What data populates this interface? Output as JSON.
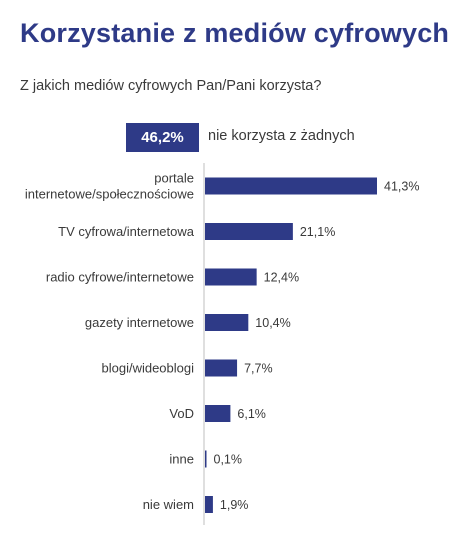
{
  "header": {
    "title": "Korzystanie z mediów cyfrowych",
    "question": "Z jakich mediów cyfrowych Pan/Pani korzysta?"
  },
  "highlight": {
    "value": "46,2%",
    "label": "nie korzysta z żadnych"
  },
  "colors": {
    "bar": "#2e3a87",
    "title": "#2e3a87",
    "text": "#3a3a3a",
    "axis": "#bfbfbf"
  },
  "chart_data": {
    "type": "bar",
    "orientation": "horizontal",
    "categories": [
      [
        "portale",
        "internetowe/społecznościowe"
      ],
      [
        "TV cyfrowa/internetowa"
      ],
      [
        "radio cyfrowe/internetowe"
      ],
      [
        "gazety internetowe"
      ],
      [
        "blogi/wideoblogi"
      ],
      [
        "VoD"
      ],
      [
        "inne"
      ],
      [
        "nie wiem"
      ]
    ],
    "values": [
      41.3,
      21.1,
      12.4,
      10.4,
      7.7,
      6.1,
      0.1,
      1.9
    ],
    "value_labels": [
      "41,3%",
      "21,1%",
      "12,4%",
      "10,4%",
      "7,7%",
      "6,1%",
      "0,1%",
      "1,9%"
    ],
    "title": "Korzystanie z mediów cyfrowych",
    "subtitle": "Z jakich mediów cyfrowych Pan/Pani korzysta?",
    "xlim": [
      0,
      41.3
    ],
    "grid": false,
    "legend": "none"
  }
}
